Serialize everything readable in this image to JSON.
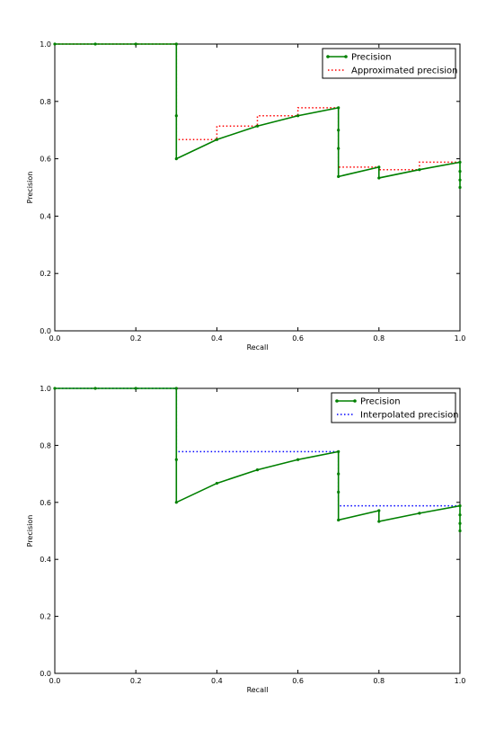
{
  "chart_data": [
    {
      "type": "line",
      "xlabel": "Recall",
      "ylabel": "Precision",
      "xlim": [
        0,
        1
      ],
      "ylim": [
        0,
        1
      ],
      "xticks": [
        "0.0",
        "0.2",
        "0.4",
        "0.6",
        "0.8",
        "1.0"
      ],
      "yticks": [
        "0.0",
        "0.2",
        "0.4",
        "0.6",
        "0.8",
        "1.0"
      ],
      "grid": false,
      "legend": "top-right",
      "series": [
        {
          "name": "Precision",
          "color": "#008000",
          "style": "solid",
          "markers": true,
          "x": [
            0.0,
            0.1,
            0.2,
            0.3,
            0.3,
            0.3,
            0.4,
            0.5,
            0.6,
            0.7,
            0.7,
            0.7,
            0.7,
            0.8,
            0.8,
            0.9,
            1.0,
            1.0,
            1.0,
            1.0
          ],
          "y": [
            1.0,
            1.0,
            1.0,
            1.0,
            0.75,
            0.6,
            0.667,
            0.714,
            0.75,
            0.778,
            0.7,
            0.636,
            0.538,
            0.571,
            0.533,
            0.562,
            0.588,
            0.556,
            0.526,
            0.5
          ]
        },
        {
          "name": "Approximated precision",
          "color": "#ff0000",
          "style": "dotted",
          "markers": false,
          "x": [
            0.0,
            0.3,
            0.3,
            0.4,
            0.4,
            0.5,
            0.5,
            0.6,
            0.6,
            0.7,
            0.7,
            0.8,
            0.8,
            0.9,
            0.9,
            1.0
          ],
          "y": [
            1.0,
            1.0,
            0.667,
            0.667,
            0.714,
            0.714,
            0.75,
            0.75,
            0.778,
            0.778,
            0.571,
            0.571,
            0.562,
            0.562,
            0.588,
            0.588
          ]
        }
      ]
    },
    {
      "type": "line",
      "xlabel": "Recall",
      "ylabel": "Precision",
      "xlim": [
        0,
        1
      ],
      "ylim": [
        0,
        1
      ],
      "xticks": [
        "0.0",
        "0.2",
        "0.4",
        "0.6",
        "0.8",
        "1.0"
      ],
      "yticks": [
        "0.0",
        "0.2",
        "0.4",
        "0.6",
        "0.8",
        "1.0"
      ],
      "grid": false,
      "legend": "top-right",
      "series": [
        {
          "name": "Precision",
          "color": "#008000",
          "style": "solid",
          "markers": true,
          "x": [
            0.0,
            0.1,
            0.2,
            0.3,
            0.3,
            0.3,
            0.4,
            0.5,
            0.6,
            0.7,
            0.7,
            0.7,
            0.7,
            0.8,
            0.8,
            0.9,
            1.0,
            1.0,
            1.0,
            1.0
          ],
          "y": [
            1.0,
            1.0,
            1.0,
            1.0,
            0.75,
            0.6,
            0.667,
            0.714,
            0.75,
            0.778,
            0.7,
            0.636,
            0.538,
            0.571,
            0.533,
            0.562,
            0.588,
            0.556,
            0.526,
            0.5
          ]
        },
        {
          "name": "Interpolated precision",
          "color": "#0000ff",
          "style": "dotted",
          "markers": false,
          "x": [
            0.0,
            0.3,
            0.3,
            0.7,
            0.7,
            1.0
          ],
          "y": [
            1.0,
            1.0,
            0.778,
            0.778,
            0.588,
            0.588
          ]
        }
      ]
    }
  ]
}
